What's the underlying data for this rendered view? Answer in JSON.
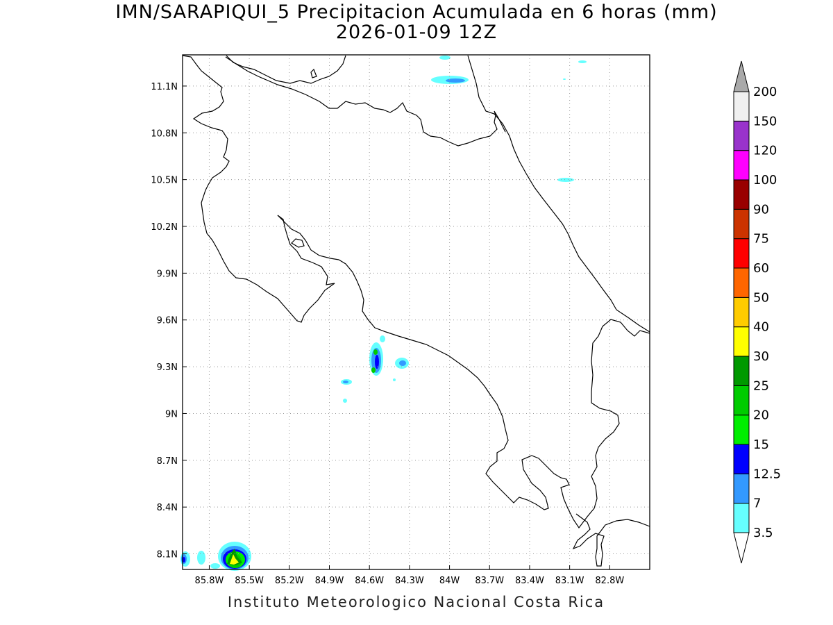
{
  "title": {
    "line1": "IMN/SARAPIQUI_5 Precipitacion Acumulada en 6 horas (mm)",
    "line2": "2026-01-09 12Z"
  },
  "footer": "Instituto Meteorologico Nacional Costa Rica",
  "map": {
    "lon_range": [
      -86.0,
      -82.5
    ],
    "lat_range": [
      8.0,
      11.3
    ],
    "x_ticks": [
      "85.8W",
      "85.5W",
      "85.2W",
      "84.9W",
      "84.6W",
      "84.3W",
      "84W",
      "83.7W",
      "83.4W",
      "83.1W",
      "82.8W"
    ],
    "y_ticks": [
      "8.1N",
      "8.4N",
      "8.7N",
      "9N",
      "9.3N",
      "9.6N",
      "9.9N",
      "10.2N",
      "10.5N",
      "10.8N",
      "11.1N"
    ],
    "grid": true
  },
  "colorbar": {
    "labels": [
      "3.5",
      "7",
      "12.5",
      "15",
      "20",
      "25",
      "30",
      "40",
      "50",
      "60",
      "75",
      "90",
      "100",
      "120",
      "150",
      "200"
    ],
    "colors": [
      "#66ffff",
      "#3399ff",
      "#0000ff",
      "#00ee00",
      "#00cc00",
      "#009900",
      "#ffff00",
      "#ffcc00",
      "#ff6600",
      "#ff0000",
      "#cc3300",
      "#990000",
      "#ff00ff",
      "#9933cc",
      "#f0f0f0"
    ],
    "over_color": "#a9a9a9",
    "under_color": "#ffffff"
  },
  "colors": {
    "coastline": "#000000",
    "grid": "#999999"
  }
}
